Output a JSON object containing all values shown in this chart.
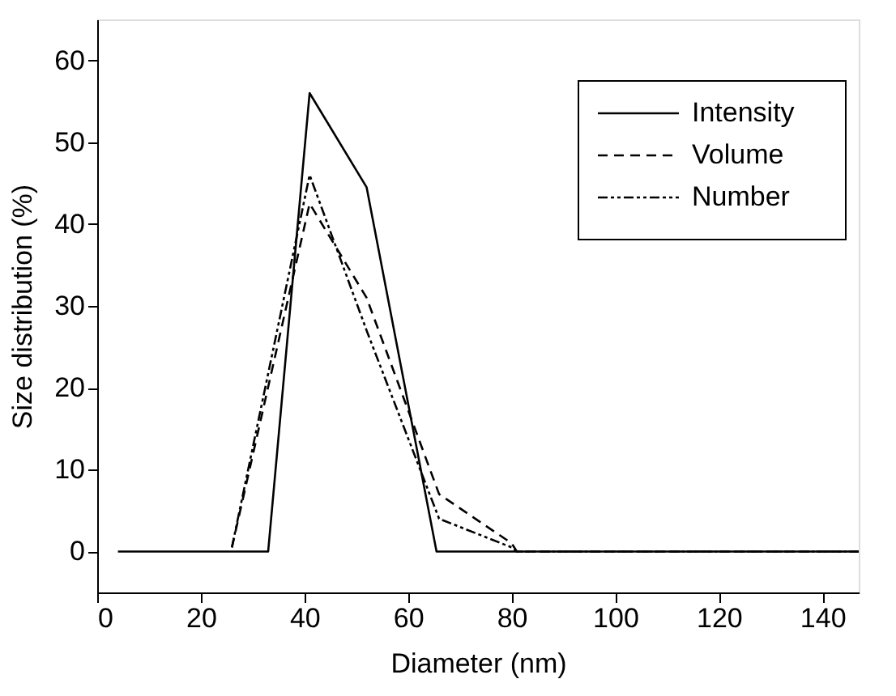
{
  "chart_data": {
    "type": "line",
    "xlabel": "Diameter (nm)",
    "ylabel": "Size distribution (%)",
    "xlim": [
      0,
      147
    ],
    "xticks": [
      0,
      20,
      40,
      60,
      80,
      100,
      120,
      140
    ],
    "ylim": [
      -5,
      65
    ],
    "yticks": [
      0,
      10,
      20,
      30,
      40,
      50,
      60
    ],
    "grid": false,
    "legend": "top right",
    "marker": "none",
    "series": [
      {
        "name": "Intensity",
        "color": "#000000",
        "line_style": "solid",
        "x": [
          4,
          33,
          41,
          52,
          65.5,
          147
        ],
        "values": [
          0,
          0,
          56,
          44.5,
          0,
          0
        ]
      },
      {
        "name": "Volume",
        "color": "#000000",
        "line_style": "dashed",
        "x": [
          26,
          41,
          52,
          66,
          80,
          81,
          147
        ],
        "values": [
          0.5,
          42.5,
          31,
          7,
          1,
          0,
          0
        ]
      },
      {
        "name": "Number",
        "color": "#000000",
        "line_style": "dotted",
        "x": [
          26,
          41,
          52,
          66,
          80,
          81,
          147
        ],
        "values": [
          0.5,
          46,
          27,
          4,
          0.5,
          0,
          0
        ]
      }
    ]
  }
}
